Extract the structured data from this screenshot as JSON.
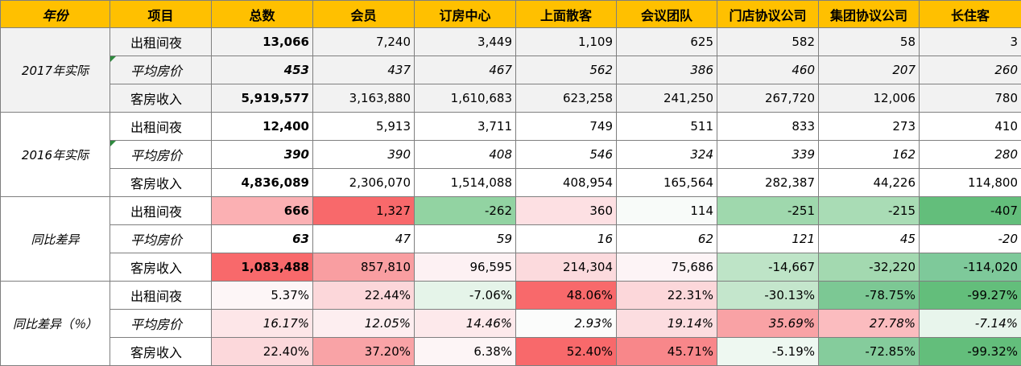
{
  "headers": [
    "年份",
    "项目",
    "总数",
    "会员",
    "订房中心",
    "上面散客",
    "会议团队",
    "门店协议公司",
    "集团协议公司",
    "长住客"
  ],
  "groups": [
    {
      "name": "2017年实际",
      "bg": "#f2f2f2",
      "rows": [
        {
          "item": "出租间夜",
          "italic": false,
          "values": [
            "13,066",
            "7,240",
            "3,449",
            "1,109",
            "625",
            "582",
            "58",
            "3"
          ]
        },
        {
          "item": "平均房价",
          "italic": true,
          "values": [
            "453",
            "437",
            "467",
            "562",
            "386",
            "460",
            "207",
            "260"
          ]
        },
        {
          "item": "客房收入",
          "italic": false,
          "values": [
            "5,919,577",
            "3,163,880",
            "1,610,683",
            "623,258",
            "241,250",
            "267,720",
            "12,006",
            "780"
          ]
        }
      ]
    },
    {
      "name": "2016年实际",
      "bg": "#ffffff",
      "rows": [
        {
          "item": "出租间夜",
          "italic": false,
          "values": [
            "12,400",
            "5,913",
            "3,711",
            "749",
            "511",
            "833",
            "273",
            "410"
          ]
        },
        {
          "item": "平均房价",
          "italic": true,
          "values": [
            "390",
            "390",
            "408",
            "546",
            "324",
            "339",
            "162",
            "280"
          ]
        },
        {
          "item": "客房收入",
          "italic": false,
          "values": [
            "4,836,089",
            "2,306,070",
            "1,514,088",
            "408,954",
            "165,564",
            "282,387",
            "44,226",
            "114,800"
          ]
        }
      ]
    },
    {
      "name": "同比差异",
      "bg": "#ffffff",
      "rows": [
        {
          "item": "出租间夜",
          "italic": false,
          "values": [
            "666",
            "1,327",
            "-262",
            "360",
            "114",
            "-251",
            "-215",
            "-407"
          ],
          "colors": [
            "#fbb0b3",
            "#f8696b",
            "#92d3a2",
            "#fde0e3",
            "#f8fbf9",
            "#9fd8ad",
            "#a9dcb5",
            "#63be7b"
          ]
        },
        {
          "item": "平均房价",
          "italic": true,
          "values": [
            "63",
            "47",
            "59",
            "16",
            "62",
            "121",
            "45",
            "-20"
          ],
          "colors": [
            "#ffffff",
            "#ffffff",
            "#ffffff",
            "#ffffff",
            "#ffffff",
            "#ffffff",
            "#ffffff",
            "#ffffff"
          ]
        },
        {
          "item": "客房收入",
          "italic": false,
          "values": [
            "1,083,488",
            "857,810",
            "96,595",
            "214,304",
            "75,686",
            "-14,667",
            "-32,220",
            "-114,020"
          ],
          "colors": [
            "#f8696b",
            "#f99ea1",
            "#fdf1f3",
            "#fcdadd",
            "#fdf4f6",
            "#bee4c7",
            "#a3d9b0",
            "#7ec99a"
          ]
        }
      ]
    },
    {
      "name": "同比差异（％）",
      "bg": "#ffffff",
      "rows": [
        {
          "item": "出租间夜",
          "italic": false,
          "values": [
            "5.37%",
            "22.44%",
            "-7.06%",
            "48.06%",
            "22.31%",
            "-30.13%",
            "-78.75%",
            "-99.27%"
          ],
          "colors": [
            "#fdf6f7",
            "#fcd7da",
            "#e5f4e9",
            "#f8696b",
            "#fcd7da",
            "#c4e6cc",
            "#7cc894",
            "#63be7b"
          ]
        },
        {
          "item": "平均房价",
          "italic": true,
          "values": [
            "16.17%",
            "12.05%",
            "14.46%",
            "2.93%",
            "19.14%",
            "35.69%",
            "27.78%",
            "-7.14%"
          ],
          "colors": [
            "#fde6e8",
            "#fdeef0",
            "#fde9eb",
            "#fbfcfb",
            "#fcdde0",
            "#f9a2a5",
            "#fbbcbf",
            "#e8f5ec"
          ]
        },
        {
          "item": "客房收入",
          "italic": false,
          "values": [
            "22.40%",
            "37.20%",
            "6.38%",
            "52.40%",
            "45.71%",
            "-5.19%",
            "-72.85%",
            "-99.32%"
          ],
          "colors": [
            "#fcd8db",
            "#f9a3a6",
            "#fdf5f6",
            "#f8696b",
            "#f8878a",
            "#eef8f1",
            "#85cc9c",
            "#63be7b"
          ]
        }
      ]
    }
  ]
}
